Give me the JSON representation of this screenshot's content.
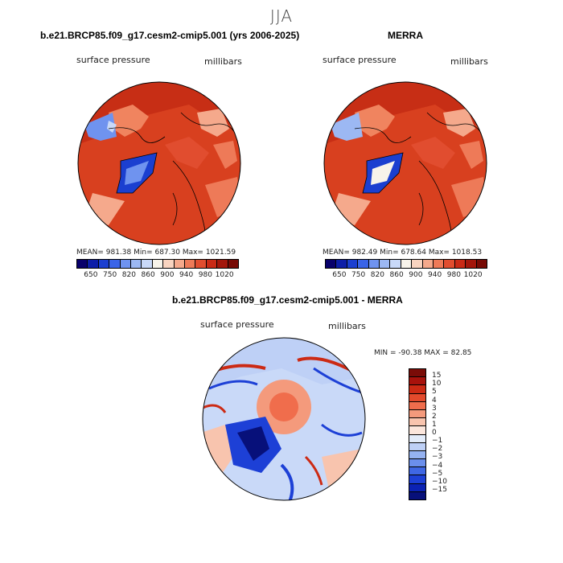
{
  "season": "JJA",
  "panel1": {
    "title": "b.e21.BRCP85.f09_g17.cesm2-cmip5.001 (yrs 2006-2025)",
    "field_label": "surface pressure",
    "units": "millibars",
    "stats": "MEAN= 981.38   Min= 687.30   Max= 1021.59"
  },
  "panel2": {
    "title": "MERRA",
    "field_label": "surface pressure",
    "units": "millibars",
    "stats": "MEAN= 982.49   Min= 678.64   Max= 1018.53"
  },
  "panel3": {
    "title": "b.e21.BRCP85.f09_g17.cesm2-cmip5.001 - MERRA",
    "field_label": "surface pressure",
    "units": "millibars",
    "stats": "MIN = -90.38 MAX =  82.85"
  },
  "colorbar_h": {
    "colors": [
      "#08006b",
      "#0d1ea8",
      "#1b3fd0",
      "#3a64e8",
      "#6f93ef",
      "#9cb8f3",
      "#c9d9f8",
      "#f7f3ea",
      "#f9d4c0",
      "#f5a98c",
      "#ee7a58",
      "#e14d2f",
      "#c92a16",
      "#a3160b",
      "#770a05"
    ],
    "labels": [
      "650",
      "750",
      "820",
      "860",
      "900",
      "940",
      "980",
      "1020"
    ]
  },
  "colorbar_v": {
    "colors": [
      "#7a0c08",
      "#a8120c",
      "#cc2a14",
      "#e34a2c",
      "#f06d4c",
      "#f49a7c",
      "#f8c4ae",
      "#fbe6dc",
      "#e3ecfa",
      "#bed0f6",
      "#95b2f1",
      "#6b8fec",
      "#3f67e4",
      "#1d40d6",
      "#0b22b4",
      "#07107a"
    ],
    "labels": [
      "15",
      "10",
      "5",
      "4",
      "3",
      "2",
      "1",
      "0",
      "−1",
      "−2",
      "−3",
      "−4",
      "−5",
      "−10",
      "−15"
    ]
  }
}
